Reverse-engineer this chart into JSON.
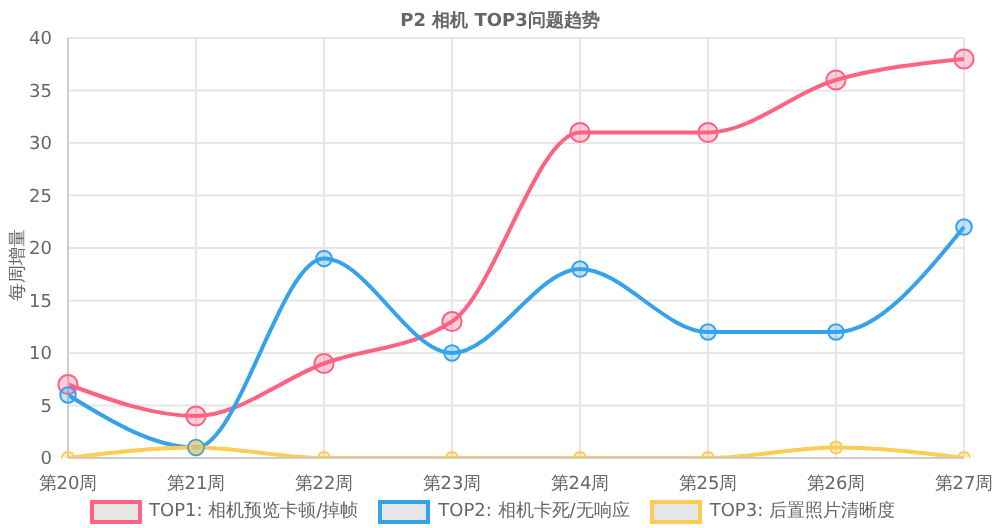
{
  "chart_data": {
    "type": "line",
    "title": "P2 相机 TOP3问题趋势",
    "ylabel": "每周增量",
    "categories": [
      "第20周",
      "第21周",
      "第22周",
      "第23周",
      "第24周",
      "第25周",
      "第26周",
      "第27周"
    ],
    "series": [
      {
        "name": "TOP1: 相机预览卡顿/掉帧",
        "color": "#ff6384",
        "values": [
          7,
          4,
          9,
          13,
          31,
          31,
          36,
          38
        ]
      },
      {
        "name": "TOP2: 相机卡死/无响应",
        "color": "#36a2eb",
        "values": [
          6,
          1,
          19,
          10,
          18,
          12,
          12,
          22
        ]
      },
      {
        "name": "TOP3: 后置照片清晰度",
        "color": "#ffcd56",
        "values": [
          0,
          1,
          0,
          0,
          0,
          0,
          1,
          0
        ]
      }
    ],
    "ylim": [
      0,
      40
    ],
    "yticks": [
      0,
      5,
      10,
      15,
      20,
      25,
      30,
      35,
      40
    ],
    "grid": true,
    "legend": "bottom",
    "marker": "circle",
    "line_style": "solid"
  }
}
